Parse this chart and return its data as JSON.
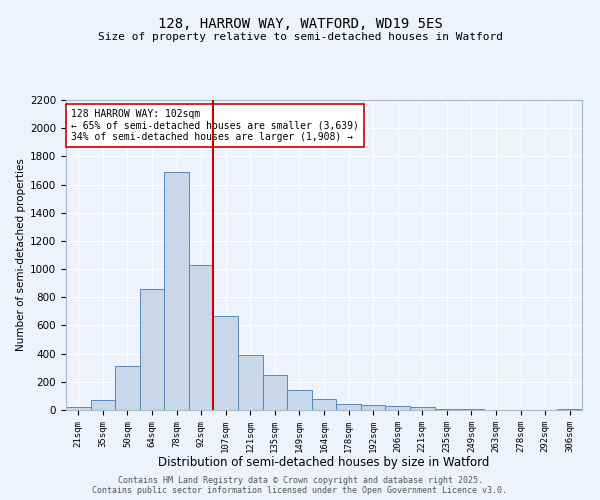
{
  "title": "128, HARROW WAY, WATFORD, WD19 5ES",
  "subtitle": "Size of property relative to semi-detached houses in Watford",
  "xlabel": "Distribution of semi-detached houses by size in Watford",
  "ylabel": "Number of semi-detached properties",
  "categories": [
    "21sqm",
    "35sqm",
    "50sqm",
    "64sqm",
    "78sqm",
    "92sqm",
    "107sqm",
    "121sqm",
    "135sqm",
    "149sqm",
    "164sqm",
    "178sqm",
    "192sqm",
    "206sqm",
    "221sqm",
    "235sqm",
    "249sqm",
    "263sqm",
    "278sqm",
    "292sqm",
    "306sqm"
  ],
  "values": [
    20,
    70,
    310,
    860,
    1690,
    1030,
    670,
    390,
    250,
    140,
    80,
    40,
    35,
    28,
    20,
    8,
    4,
    2,
    1,
    1,
    10
  ],
  "bar_color": "#c8d8e8",
  "bar_edge_color": "#5588bb",
  "vline_x_index": 6,
  "vline_color": "#cc0000",
  "annotation_text": "128 HARROW WAY: 102sqm\n← 65% of semi-detached houses are smaller (3,639)\n34% of semi-detached houses are larger (1,908) →",
  "annotation_box_color": "#ffffff",
  "annotation_edge_color": "#cc0000",
  "ylim": [
    0,
    2200
  ],
  "yticks": [
    0,
    200,
    400,
    600,
    800,
    1000,
    1200,
    1400,
    1600,
    1800,
    2000,
    2200
  ],
  "background_color": "#eef2fa",
  "grid_color": "#ffffff",
  "footer_line1": "Contains HM Land Registry data © Crown copyright and database right 2025.",
  "footer_line2": "Contains public sector information licensed under the Open Government Licence v3.0."
}
